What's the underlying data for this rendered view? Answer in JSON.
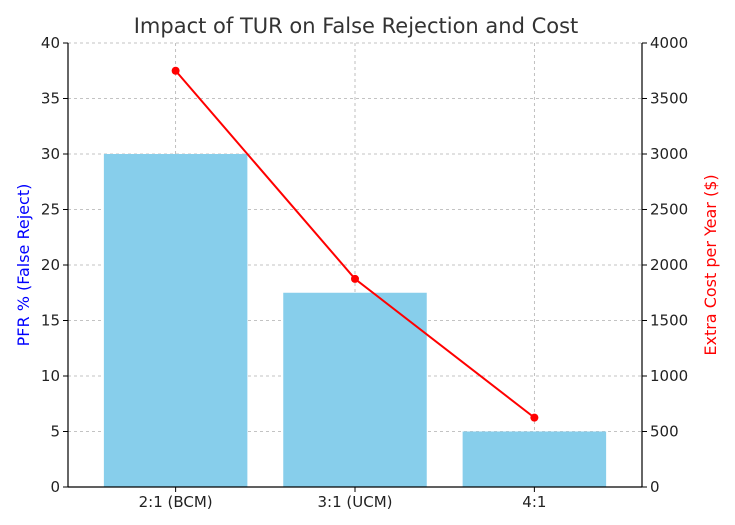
{
  "chart_data": {
    "type": "bar",
    "title": "Impact of TUR on False Rejection and Cost",
    "categories": [
      "2:1 (BCM)",
      "3:1 (UCM)",
      "4:1"
    ],
    "series": [
      {
        "values": [
          30,
          17.5,
          5
        ],
        "axis": "left",
        "type": "bar",
        "color": "#87CEEB"
      },
      {
        "values": [
          3750,
          1875,
          625
        ],
        "axis": "right",
        "type": "line",
        "color": "#ff0000",
        "marker": "circle"
      }
    ],
    "ylabel_left": "PFR % (False Reject)",
    "ylabel_right": "Extra Cost per Year ($)",
    "ylim_left": [
      0,
      40
    ],
    "ylim_right": [
      0,
      4000
    ],
    "yticks_left": [
      0,
      5,
      10,
      15,
      20,
      25,
      30,
      35,
      40
    ],
    "yticks_right": [
      0,
      500,
      1000,
      1500,
      2000,
      2500,
      3000,
      3500,
      4000
    ],
    "grid": true,
    "colors": {
      "ylabel_left": "#0000ff",
      "ylabel_right": "#ff0000",
      "grid": "#b0b0b0",
      "axis": "#000000"
    }
  }
}
